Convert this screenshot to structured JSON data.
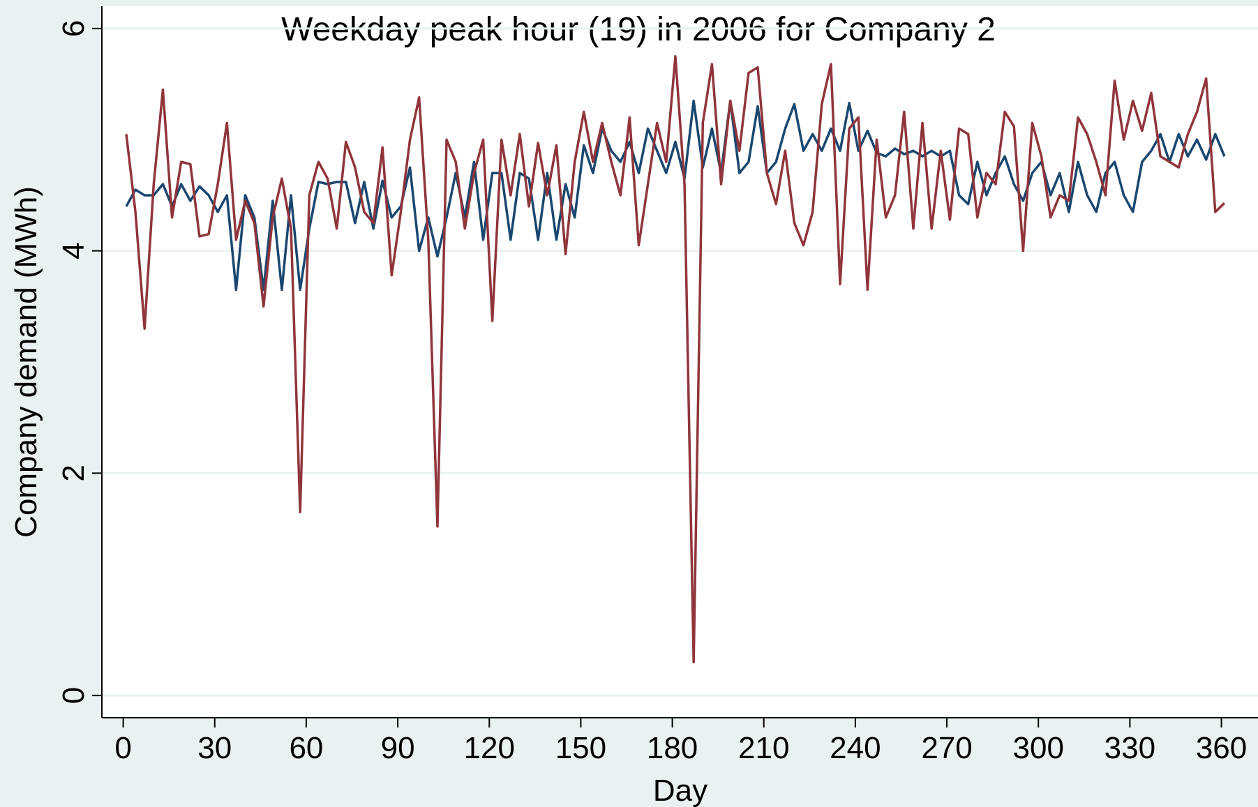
{
  "chart_data": {
    "type": "line",
    "title": "Weekday peak hour (19) in 2006 for Company 2",
    "x_label": "Day",
    "y_label": "Company demand (MWh)",
    "x": [
      1,
      4,
      7,
      10,
      13,
      16,
      19,
      22,
      25,
      28,
      31,
      34,
      37,
      40,
      43,
      46,
      49,
      52,
      55,
      58,
      61,
      64,
      67,
      70,
      73,
      76,
      79,
      82,
      85,
      88,
      91,
      94,
      97,
      100,
      103,
      106,
      109,
      112,
      115,
      118,
      121,
      124,
      127,
      130,
      133,
      136,
      139,
      142,
      145,
      148,
      151,
      154,
      157,
      160,
      163,
      166,
      169,
      172,
      175,
      178,
      181,
      184,
      187,
      190,
      193,
      196,
      199,
      202,
      205,
      208,
      211,
      214,
      217,
      220,
      223,
      226,
      229,
      232,
      235,
      238,
      241,
      244,
      247,
      250,
      253,
      256,
      259,
      262,
      265,
      268,
      271,
      274,
      277,
      280,
      283,
      286,
      289,
      292,
      295,
      298,
      301,
      304,
      307,
      310,
      313,
      316,
      319,
      322,
      325,
      328,
      331,
      334,
      337,
      340,
      343,
      346,
      349,
      352,
      355,
      358,
      361
    ],
    "series": [
      {
        "color": "#1a476f",
        "values": [
          4.4,
          4.55,
          4.5,
          4.5,
          4.6,
          4.4,
          4.6,
          4.45,
          4.58,
          4.5,
          4.35,
          4.5,
          3.65,
          4.5,
          4.3,
          3.65,
          4.45,
          3.65,
          4.5,
          3.65,
          4.2,
          4.62,
          4.6,
          4.62,
          4.62,
          4.25,
          4.62,
          4.2,
          4.63,
          4.3,
          4.4,
          4.75,
          4.0,
          4.3,
          3.95,
          4.3,
          4.7,
          4.3,
          4.8,
          4.1,
          4.7,
          4.7,
          4.1,
          4.7,
          4.65,
          4.1,
          4.7,
          4.1,
          4.6,
          4.3,
          4.95,
          4.7,
          5.1,
          4.9,
          4.8,
          4.98,
          4.7,
          5.1,
          4.9,
          4.7,
          4.98,
          4.65,
          5.35,
          4.75,
          5.1,
          4.7,
          5.35,
          4.7,
          4.8,
          5.3,
          4.7,
          4.8,
          5.1,
          5.32,
          4.9,
          5.05,
          4.9,
          5.1,
          4.9,
          5.33,
          4.9,
          5.08,
          4.88,
          4.85,
          4.92,
          4.87,
          4.9,
          4.85,
          4.9,
          4.85,
          4.9,
          4.5,
          4.42,
          4.8,
          4.5,
          4.7,
          4.85,
          4.6,
          4.45,
          4.7,
          4.8,
          4.5,
          4.7,
          4.35,
          4.8,
          4.5,
          4.35,
          4.7,
          4.8,
          4.5,
          4.35,
          4.8,
          4.9,
          5.05,
          4.8,
          5.05,
          4.85,
          5.0,
          4.82,
          5.05,
          4.85
        ]
      },
      {
        "color": "#90353b",
        "values": [
          5.05,
          4.35,
          3.3,
          4.6,
          5.45,
          4.3,
          4.8,
          4.78,
          4.13,
          4.15,
          4.6,
          5.15,
          4.1,
          4.45,
          4.25,
          3.5,
          4.3,
          4.65,
          4.2,
          1.65,
          4.5,
          4.8,
          4.65,
          4.2,
          4.98,
          4.75,
          4.35,
          4.25,
          4.93,
          3.78,
          4.35,
          5.0,
          5.38,
          4.1,
          1.52,
          5.0,
          4.8,
          4.2,
          4.7,
          5.0,
          3.37,
          5.0,
          4.5,
          5.05,
          4.4,
          4.97,
          4.5,
          4.95,
          3.97,
          4.8,
          5.25,
          4.8,
          5.15,
          4.8,
          4.5,
          5.2,
          4.05,
          4.6,
          5.15,
          4.8,
          5.75,
          4.6,
          0.3,
          5.15,
          5.68,
          4.6,
          5.35,
          4.9,
          5.6,
          5.65,
          4.7,
          4.42,
          4.9,
          4.25,
          4.05,
          4.35,
          5.32,
          5.68,
          3.7,
          5.1,
          5.2,
          3.65,
          5.0,
          4.3,
          4.5,
          5.25,
          4.2,
          5.15,
          4.2,
          4.9,
          4.28,
          5.1,
          5.05,
          4.3,
          4.7,
          4.6,
          5.25,
          5.12,
          4.0,
          5.15,
          4.85,
          4.3,
          4.5,
          4.45,
          5.2,
          5.05,
          4.8,
          4.5,
          5.53,
          5.0,
          5.35,
          5.08,
          5.42,
          4.85,
          4.8,
          4.75,
          5.05,
          5.25,
          5.55,
          4.35,
          4.43
        ]
      }
    ],
    "xlim": [
      -7,
      372
    ],
    "ylim": [
      -0.2,
      6.2
    ],
    "xticks": [
      0,
      30,
      60,
      90,
      120,
      150,
      180,
      210,
      240,
      270,
      300,
      330,
      360
    ],
    "yticks": [
      0,
      2,
      4,
      6
    ],
    "grid": true,
    "grid_color": "#eaf1f3"
  }
}
